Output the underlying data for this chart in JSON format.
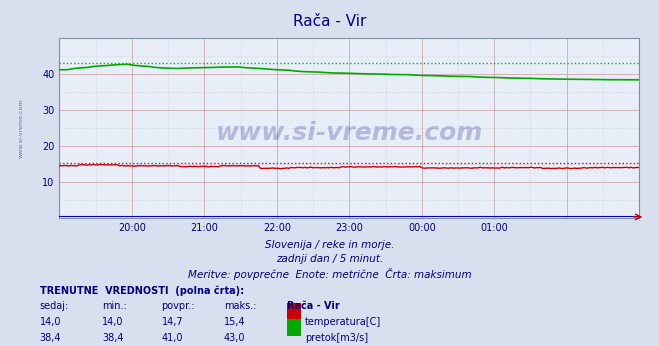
{
  "title": "Rača - Vir",
  "bg_color": "#d8e0f0",
  "plot_bg_color": "#e8eef8",
  "xlim": [
    0,
    288
  ],
  "ylim": [
    0,
    50
  ],
  "yticks": [
    10,
    20,
    30,
    40
  ],
  "xtick_positions": [
    36,
    72,
    108,
    144,
    180,
    216,
    252
  ],
  "xtick_labels": [
    "20:00",
    "21:00",
    "22:00",
    "23:00",
    "00:00",
    "01:00",
    ""
  ],
  "subtitle1": "Slovenija / reke in morje.",
  "subtitle2": "zadnji dan / 5 minut.",
  "subtitle3": "Meritve: povprečne  Enote: metrične  Črta: maksimum",
  "temp_color": "#cc0000",
  "flow_color": "#00aa00",
  "height_color": "#0000bb",
  "temp_max": 15.4,
  "flow_max": 43.0,
  "axis_label_color": "#000080",
  "watermark": "www.si-vreme.com",
  "watermark_color": "#000080",
  "left_label": "www.si-vreme.com",
  "left_label_color": "#5060a0",
  "table_header": "TRENUTNE  VREDNOSTI  (polna črta):",
  "col_headers": [
    "sedaj:",
    "min.:",
    "povpr.:",
    "maks.:",
    "Rača - Vir"
  ],
  "temp_vals": [
    "14,0",
    "14,0",
    "14,7",
    "15,4"
  ],
  "flow_vals": [
    "38,4",
    "38,4",
    "41,0",
    "43,0"
  ],
  "temp_label": "temperatura[C]",
  "flow_label": "pretok[m3/s]"
}
